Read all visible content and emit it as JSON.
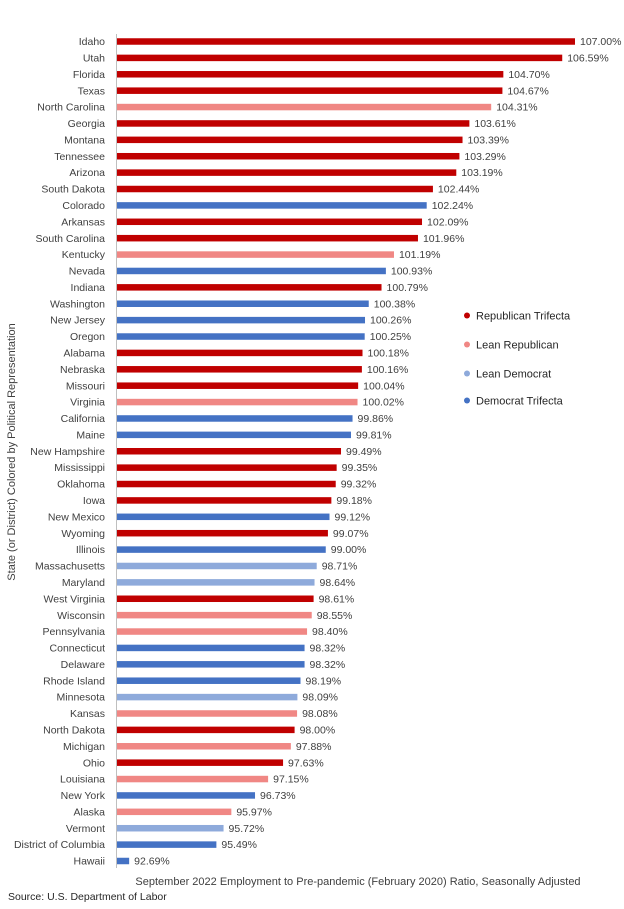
{
  "chart_data": {
    "type": "bar",
    "orientation": "horizontal",
    "xlabel": "September 2022 Employment to Pre-pandemic (February 2020) Ratio, Seasonally Adjusted",
    "ylabel": "State (or District) Colored by Political Representation",
    "xlim": [
      92.3,
      107.0
    ],
    "value_suffix": "%",
    "grid": false,
    "legend_position": "right",
    "colors": {
      "Republican Trifecta": "#c00000",
      "Lean Republican": "#f08784",
      "Lean Democrat": "#8eaadb",
      "Democrat Trifecta": "#4472c4"
    },
    "legend": [
      "Republican Trifecta",
      "Lean Republican",
      "Lean Democrat",
      "Democrat Trifecta"
    ],
    "bars": [
      {
        "state": "Idaho",
        "value": 107.0,
        "group": "Republican Trifecta"
      },
      {
        "state": "Utah",
        "value": 106.59,
        "group": "Republican Trifecta"
      },
      {
        "state": "Florida",
        "value": 104.7,
        "group": "Republican Trifecta"
      },
      {
        "state": "Texas",
        "value": 104.67,
        "group": "Republican Trifecta"
      },
      {
        "state": "North Carolina",
        "value": 104.31,
        "group": "Lean Republican"
      },
      {
        "state": "Georgia",
        "value": 103.61,
        "group": "Republican Trifecta"
      },
      {
        "state": "Montana",
        "value": 103.39,
        "group": "Republican Trifecta"
      },
      {
        "state": "Tennessee",
        "value": 103.29,
        "group": "Republican Trifecta"
      },
      {
        "state": "Arizona",
        "value": 103.19,
        "group": "Republican Trifecta"
      },
      {
        "state": "South Dakota",
        "value": 102.44,
        "group": "Republican Trifecta"
      },
      {
        "state": "Colorado",
        "value": 102.24,
        "group": "Democrat Trifecta"
      },
      {
        "state": "Arkansas",
        "value": 102.09,
        "group": "Republican Trifecta"
      },
      {
        "state": "South Carolina",
        "value": 101.96,
        "group": "Republican Trifecta"
      },
      {
        "state": "Kentucky",
        "value": 101.19,
        "group": "Lean Republican"
      },
      {
        "state": "Nevada",
        "value": 100.93,
        "group": "Democrat Trifecta"
      },
      {
        "state": "Indiana",
        "value": 100.79,
        "group": "Republican Trifecta"
      },
      {
        "state": "Washington",
        "value": 100.38,
        "group": "Democrat Trifecta"
      },
      {
        "state": "New Jersey",
        "value": 100.26,
        "group": "Democrat Trifecta"
      },
      {
        "state": "Oregon",
        "value": 100.25,
        "group": "Democrat Trifecta"
      },
      {
        "state": "Alabama",
        "value": 100.18,
        "group": "Republican Trifecta"
      },
      {
        "state": "Nebraska",
        "value": 100.16,
        "group": "Republican Trifecta"
      },
      {
        "state": "Missouri",
        "value": 100.04,
        "group": "Republican Trifecta"
      },
      {
        "state": "Virginia",
        "value": 100.02,
        "group": "Lean Republican"
      },
      {
        "state": "California",
        "value": 99.86,
        "group": "Democrat Trifecta"
      },
      {
        "state": "Maine",
        "value": 99.81,
        "group": "Democrat Trifecta"
      },
      {
        "state": "New Hampshire",
        "value": 99.49,
        "group": "Republican Trifecta"
      },
      {
        "state": "Mississippi",
        "value": 99.35,
        "group": "Republican Trifecta"
      },
      {
        "state": "Oklahoma",
        "value": 99.32,
        "group": "Republican Trifecta"
      },
      {
        "state": "Iowa",
        "value": 99.18,
        "group": "Republican Trifecta"
      },
      {
        "state": "New Mexico",
        "value": 99.12,
        "group": "Democrat Trifecta"
      },
      {
        "state": "Wyoming",
        "value": 99.07,
        "group": "Republican Trifecta"
      },
      {
        "state": "Illinois",
        "value": 99.0,
        "group": "Democrat Trifecta"
      },
      {
        "state": "Massachusetts",
        "value": 98.71,
        "group": "Lean Democrat"
      },
      {
        "state": "Maryland",
        "value": 98.64,
        "group": "Lean Democrat"
      },
      {
        "state": "West Virginia",
        "value": 98.61,
        "group": "Republican Trifecta"
      },
      {
        "state": "Wisconsin",
        "value": 98.55,
        "group": "Lean Republican"
      },
      {
        "state": "Pennsylvania",
        "value": 98.4,
        "group": "Lean Republican"
      },
      {
        "state": "Connecticut",
        "value": 98.32,
        "group": "Democrat Trifecta"
      },
      {
        "state": "Delaware",
        "value": 98.32,
        "group": "Democrat Trifecta"
      },
      {
        "state": "Rhode Island",
        "value": 98.19,
        "group": "Democrat Trifecta"
      },
      {
        "state": "Minnesota",
        "value": 98.09,
        "group": "Lean Democrat"
      },
      {
        "state": "Kansas",
        "value": 98.08,
        "group": "Lean Republican"
      },
      {
        "state": "North Dakota",
        "value": 98.0,
        "group": "Republican Trifecta"
      },
      {
        "state": "Michigan",
        "value": 97.88,
        "group": "Lean Republican"
      },
      {
        "state": "Ohio",
        "value": 97.63,
        "group": "Republican Trifecta"
      },
      {
        "state": "Louisiana",
        "value": 97.15,
        "group": "Lean Republican"
      },
      {
        "state": "New York",
        "value": 96.73,
        "group": "Democrat Trifecta"
      },
      {
        "state": "Alaska",
        "value": 95.97,
        "group": "Lean Republican"
      },
      {
        "state": "Vermont",
        "value": 95.72,
        "group": "Lean Democrat"
      },
      {
        "state": "District of Columbia",
        "value": 95.49,
        "group": "Democrat Trifecta"
      },
      {
        "state": "Hawaii",
        "value": 92.69,
        "group": "Democrat Trifecta"
      }
    ]
  },
  "source": "Source: U.S. Department of Labor"
}
